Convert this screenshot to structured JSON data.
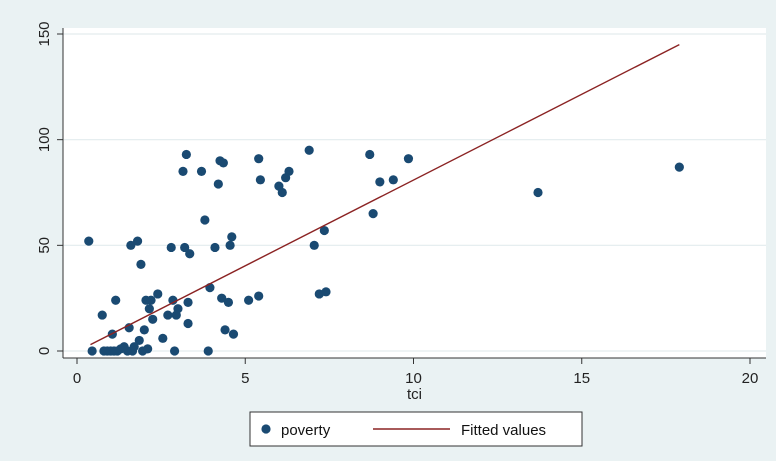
{
  "chart_data": {
    "type": "scatter",
    "xlabel": "tci",
    "ylabel": "",
    "xlim": [
      0,
      20
    ],
    "ylim": [
      0,
      150
    ],
    "x_ticks": [
      "0",
      "5",
      "10",
      "15",
      "20"
    ],
    "y_ticks": [
      "0",
      "50",
      "100",
      "150"
    ],
    "grid": "horizontal",
    "legend_position": "bottom",
    "legend": [
      "poverty",
      "Fitted values"
    ],
    "colors": {
      "points": "#1a4a72",
      "fit_line": "#8b2323",
      "plot_bg": "#ffffff",
      "outer_bg": "#eaf2f3",
      "grid": "#e3ecee"
    },
    "series": [
      {
        "name": "poverty",
        "kind": "scatter",
        "points": [
          [
            0.35,
            52
          ],
          [
            0.45,
            0
          ],
          [
            0.75,
            17
          ],
          [
            0.8,
            0
          ],
          [
            0.9,
            0
          ],
          [
            1.0,
            0
          ],
          [
            1.05,
            8
          ],
          [
            1.1,
            0
          ],
          [
            1.15,
            24
          ],
          [
            1.2,
            0
          ],
          [
            1.3,
            1
          ],
          [
            1.4,
            2
          ],
          [
            1.5,
            0
          ],
          [
            1.55,
            11
          ],
          [
            1.6,
            50
          ],
          [
            1.65,
            0
          ],
          [
            1.7,
            2
          ],
          [
            1.8,
            52
          ],
          [
            1.85,
            5
          ],
          [
            1.9,
            41
          ],
          [
            1.95,
            0
          ],
          [
            2.0,
            10
          ],
          [
            2.05,
            24
          ],
          [
            2.1,
            1
          ],
          [
            2.15,
            20
          ],
          [
            2.2,
            24
          ],
          [
            2.25,
            15
          ],
          [
            2.4,
            27
          ],
          [
            2.55,
            6
          ],
          [
            2.7,
            17
          ],
          [
            2.8,
            49
          ],
          [
            2.85,
            24
          ],
          [
            2.9,
            0
          ],
          [
            2.95,
            17
          ],
          [
            3.0,
            20
          ],
          [
            3.15,
            85
          ],
          [
            3.2,
            49
          ],
          [
            3.25,
            93
          ],
          [
            3.3,
            23
          ],
          [
            3.35,
            46
          ],
          [
            3.3,
            13
          ],
          [
            3.7,
            85
          ],
          [
            3.8,
            62
          ],
          [
            3.9,
            0
          ],
          [
            3.95,
            30
          ],
          [
            4.1,
            49
          ],
          [
            4.2,
            79
          ],
          [
            4.25,
            90
          ],
          [
            4.3,
            25
          ],
          [
            4.35,
            89
          ],
          [
            4.4,
            10
          ],
          [
            4.5,
            23
          ],
          [
            4.55,
            50
          ],
          [
            4.6,
            54
          ],
          [
            4.65,
            8
          ],
          [
            5.1,
            24
          ],
          [
            5.4,
            26
          ],
          [
            5.4,
            91
          ],
          [
            5.45,
            81
          ],
          [
            6.0,
            78
          ],
          [
            6.1,
            75
          ],
          [
            6.2,
            82
          ],
          [
            6.3,
            85
          ],
          [
            6.9,
            95
          ],
          [
            7.05,
            50
          ],
          [
            7.2,
            27
          ],
          [
            7.35,
            57
          ],
          [
            7.4,
            28
          ],
          [
            8.7,
            93
          ],
          [
            8.8,
            65
          ],
          [
            9.0,
            80
          ],
          [
            9.4,
            81
          ],
          [
            9.85,
            91
          ],
          [
            13.7,
            75
          ],
          [
            17.9,
            87
          ]
        ]
      },
      {
        "name": "Fitted values",
        "kind": "line",
        "points": [
          [
            0.4,
            3
          ],
          [
            17.9,
            145
          ]
        ]
      }
    ]
  }
}
